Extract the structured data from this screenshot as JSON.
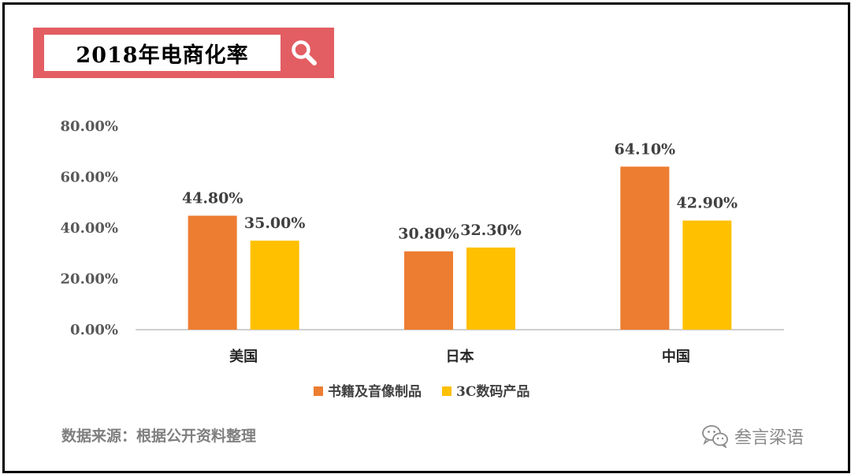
{
  "header": {
    "title": "2018年电商化率"
  },
  "footer": {
    "source": "数据来源：根据公开资料整理",
    "watermark": "叁言梁语"
  },
  "colors": {
    "accent": "#e35e63",
    "series1": "#ed7d31",
    "series2": "#ffc000"
  },
  "icons": [
    "search-icon",
    "wechat-icon"
  ],
  "chart_data": {
    "type": "bar",
    "title": "2018年电商化率",
    "categories": [
      "美国",
      "日本",
      "中国"
    ],
    "series": [
      {
        "name": "书籍及音像制品",
        "values": [
          44.8,
          30.8,
          64.1
        ],
        "labels": [
          "44.80%",
          "30.80%",
          "64.10%"
        ],
        "color": "#ed7d31"
      },
      {
        "name": "3C数码产品",
        "values": [
          35.0,
          32.3,
          42.9
        ],
        "labels": [
          "35.00%",
          "32.30%",
          "42.90%"
        ],
        "color": "#ffc000"
      }
    ],
    "yticks": [
      "0.00%",
      "20.00%",
      "40.00%",
      "60.00%",
      "80.00%"
    ],
    "ytick_values": [
      0,
      20,
      40,
      60,
      80
    ],
    "ylim": [
      0,
      80
    ],
    "xlabel": "",
    "ylabel": "",
    "grid": false,
    "legend": "bottom"
  }
}
